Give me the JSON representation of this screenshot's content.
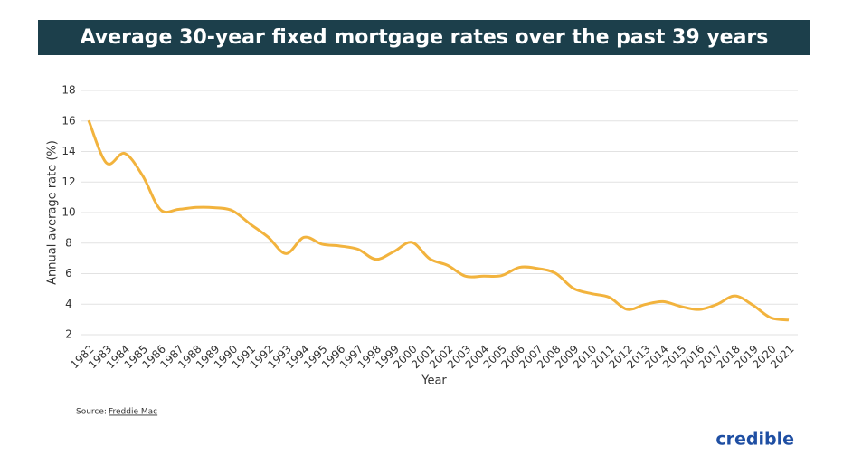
{
  "chart_data": {
    "type": "line",
    "title": "Average 30-year fixed mortgage rates over the past 39 years",
    "y_label": "Annual average rate (%)",
    "x_label": "Year",
    "source_prefix": "Source:",
    "source_name": "Freddie Mac",
    "brand": "credible",
    "categories": [
      "1982",
      "1983",
      "1984",
      "1985",
      "1986",
      "1987",
      "1988",
      "1989",
      "1990",
      "1991",
      "1992",
      "1993",
      "1994",
      "1995",
      "1996",
      "1997",
      "1998",
      "1999",
      "2000",
      "2001",
      "2002",
      "2003",
      "2004",
      "2005",
      "2006",
      "2007",
      "2008",
      "2009",
      "2010",
      "2011",
      "2012",
      "2013",
      "2014",
      "2015",
      "2016",
      "2017",
      "2018",
      "2019",
      "2020",
      "2021"
    ],
    "values": [
      16.04,
      13.24,
      13.88,
      12.43,
      10.19,
      10.21,
      10.34,
      10.32,
      10.13,
      9.25,
      8.39,
      7.31,
      8.38,
      7.93,
      7.81,
      7.6,
      6.94,
      7.44,
      8.05,
      6.97,
      6.54,
      5.83,
      5.84,
      5.87,
      6.41,
      6.34,
      6.03,
      5.04,
      4.69,
      4.45,
      3.66,
      3.98,
      4.17,
      3.85,
      3.65,
      3.99,
      4.54,
      3.94,
      3.11,
      2.96
    ],
    "color": "#f2b33d",
    "ylim": [
      2,
      18
    ],
    "yticks": [
      2,
      4,
      6,
      8,
      10,
      12,
      14,
      16,
      18
    ],
    "grid": true
  }
}
